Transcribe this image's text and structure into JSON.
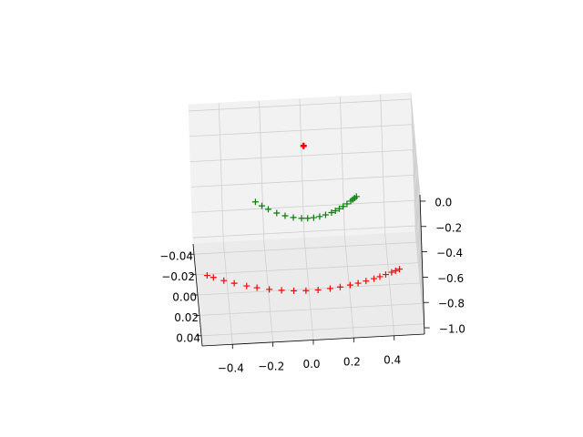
{
  "chart_data": {
    "type": "scatter3d",
    "marker": "+",
    "xlim": [
      -0.55,
      0.55
    ],
    "ylim": [
      -0.05,
      0.05
    ],
    "zlim": [
      -1.05,
      0.05
    ],
    "xticks": [
      {
        "value": -0.4,
        "label": "−0.4"
      },
      {
        "value": -0.2,
        "label": "−0.2"
      },
      {
        "value": 0,
        "label": "0.0"
      },
      {
        "value": 0.2,
        "label": "0.2"
      },
      {
        "value": 0.4,
        "label": "0.4"
      }
    ],
    "yticks": [
      {
        "value": -0.04,
        "label": "−0.04"
      },
      {
        "value": -0.02,
        "label": "−0.02"
      },
      {
        "value": 0,
        "label": "0.00"
      },
      {
        "value": 0.02,
        "label": "0.02"
      },
      {
        "value": 0.04,
        "label": "0.04"
      }
    ],
    "zticks": [
      {
        "value": 0,
        "label": "0.0"
      },
      {
        "value": -0.2,
        "label": "−0.2"
      },
      {
        "value": -0.4,
        "label": "−0.4"
      },
      {
        "value": -0.6,
        "label": "−0.6"
      },
      {
        "value": -0.8,
        "label": "−0.8"
      },
      {
        "value": -1.0,
        "label": "−1.0"
      }
    ],
    "series": [
      {
        "color": "#ff0000",
        "x": [
          -0.5,
          -0.47,
          -0.42,
          -0.37,
          -0.31,
          -0.26,
          -0.2,
          -0.14,
          -0.08,
          -0.02,
          0.04,
          0.1,
          0.15,
          0.2,
          0.24,
          0.28,
          0.32,
          0.35,
          0.38,
          0.41,
          0.43,
          0.45
        ],
        "y": [
          0.0,
          0.0023,
          0.0059,
          0.009,
          0.0123,
          0.0146,
          0.0168,
          0.0184,
          0.0195,
          0.02,
          0.0199,
          0.0192,
          0.0182,
          0.0168,
          0.0154,
          0.0137,
          0.0118,
          0.0102,
          0.0084,
          0.0065,
          0.0052,
          0.0038
        ],
        "z": [
          -0.9,
          -0.9,
          -0.9,
          -0.9,
          -0.9,
          -0.9,
          -0.9,
          -0.9,
          -0.9,
          -0.9,
          -0.9,
          -0.9,
          -0.9,
          -0.9,
          -0.9,
          -0.9,
          -0.9,
          -0.9,
          -0.9,
          -0.9,
          -0.9,
          -0.9
        ]
      },
      {
        "color": "#008000",
        "x": [
          -0.25,
          -0.22,
          -0.19,
          -0.15,
          -0.11,
          -0.07,
          -0.03,
          0.0,
          0.03,
          0.06,
          0.09,
          0.12,
          0.14,
          0.16,
          0.18,
          0.2,
          0.22,
          0.23,
          0.24,
          0.25
        ],
        "y": [
          0.0013,
          0.0055,
          0.0092,
          0.0133,
          0.0164,
          0.0185,
          0.0197,
          0.02,
          0.0197,
          0.0189,
          0.0176,
          0.0157,
          0.0141,
          0.0123,
          0.0103,
          0.008,
          0.0055,
          0.0041,
          0.0027,
          0.0013
        ],
        "z": [
          -0.33,
          -0.33,
          -0.33,
          -0.33,
          -0.33,
          -0.33,
          -0.33,
          -0.33,
          -0.33,
          -0.33,
          -0.33,
          -0.33,
          -0.33,
          -0.33,
          -0.33,
          -0.33,
          -0.33,
          -0.33,
          -0.33,
          -0.33
        ]
      },
      {
        "color": "#ff0000",
        "x": [
          0.0
        ],
        "y": [
          -0.01
        ],
        "z": [
          0.0
        ]
      }
    ]
  }
}
